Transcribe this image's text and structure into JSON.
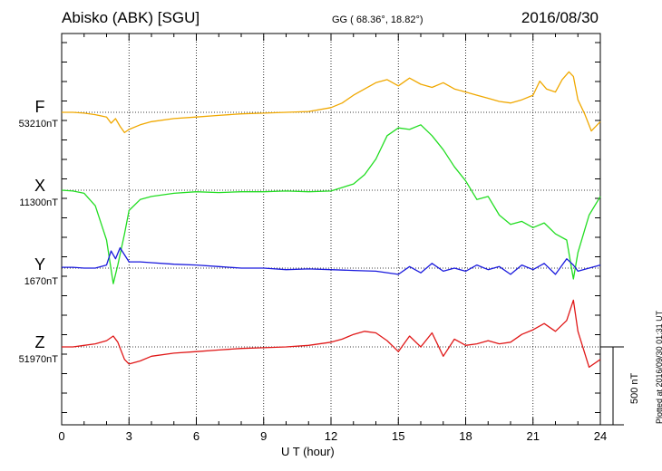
{
  "header": {
    "title": "Abisko (ABK)  [SGU]",
    "coords": "GG ( 68.36°,  18.82°)",
    "date": "2016/08/30"
  },
  "plotted_note": "Plotted at 2016/09/30 01:31  UT",
  "scale_label": "500 nT",
  "chart_data": {
    "type": "line",
    "xlabel": "U T (hour)",
    "xlim": [
      0,
      24
    ],
    "xticks": [
      "0",
      "3",
      "6",
      "9",
      "12",
      "15",
      "18",
      "21",
      "24"
    ],
    "scale_bar_nT": 500,
    "grid": true,
    "series": [
      {
        "name": "F",
        "baseline_label": "53210nT",
        "color": "#f0a800",
        "baseline_nT": 53210,
        "x": [
          0,
          0.5,
          1.0,
          1.5,
          2.0,
          2.2,
          2.4,
          2.6,
          2.8,
          3.0,
          3.5,
          4.0,
          5.0,
          6.0,
          7.0,
          8.0,
          9.0,
          10.0,
          11.0,
          12.0,
          12.5,
          13.0,
          13.5,
          14.0,
          14.5,
          15.0,
          15.5,
          16.0,
          16.5,
          17.0,
          17.5,
          18.0,
          18.5,
          19.0,
          19.5,
          20.0,
          20.5,
          21.0,
          21.3,
          21.6,
          22.0,
          22.3,
          22.6,
          22.8,
          23.0,
          23.3,
          23.6,
          24.0
        ],
        "y": [
          0,
          0,
          -5,
          -15,
          -30,
          -70,
          -40,
          -90,
          -130,
          -110,
          -80,
          -60,
          -40,
          -30,
          -20,
          -10,
          -5,
          0,
          5,
          30,
          60,
          110,
          150,
          190,
          210,
          170,
          220,
          180,
          160,
          190,
          150,
          130,
          110,
          90,
          70,
          60,
          80,
          110,
          200,
          150,
          130,
          210,
          260,
          230,
          80,
          -10,
          -120,
          -60
        ]
      },
      {
        "name": "X",
        "baseline_label": "11300nT",
        "color": "#22dd22",
        "baseline_nT": 11300,
        "x": [
          0,
          0.5,
          1.0,
          1.5,
          2.0,
          2.3,
          2.5,
          2.8,
          3.0,
          3.5,
          4.0,
          5.0,
          6.0,
          7.0,
          8.0,
          9.0,
          10.0,
          11.0,
          12.0,
          13.0,
          13.5,
          14.0,
          14.5,
          15.0,
          15.5,
          16.0,
          16.5,
          17.0,
          17.5,
          18.0,
          18.5,
          19.0,
          19.5,
          20.0,
          20.5,
          21.0,
          21.5,
          22.0,
          22.5,
          22.8,
          23.0,
          23.5,
          24.0
        ],
        "y": [
          0,
          -5,
          -20,
          -100,
          -320,
          -600,
          -480,
          -280,
          -130,
          -60,
          -40,
          -20,
          -10,
          -15,
          -10,
          -10,
          -5,
          -10,
          -5,
          40,
          100,
          200,
          350,
          400,
          390,
          420,
          350,
          260,
          150,
          60,
          -60,
          -40,
          -160,
          -220,
          -200,
          -240,
          -210,
          -280,
          -320,
          -570,
          -400,
          -160,
          -40
        ]
      },
      {
        "name": "Y",
        "baseline_label": "1670nT",
        "color": "#1a1add",
        "baseline_nT": 1670,
        "x": [
          0,
          0.5,
          1.0,
          1.5,
          2.0,
          2.2,
          2.4,
          2.6,
          3.0,
          3.5,
          4.0,
          5.0,
          6.0,
          7.0,
          8.0,
          9.0,
          10.0,
          11.0,
          12.0,
          13.0,
          14.0,
          15.0,
          15.5,
          16.0,
          16.5,
          17.0,
          17.5,
          18.0,
          18.5,
          19.0,
          19.5,
          20.0,
          20.5,
          21.0,
          21.5,
          22.0,
          22.5,
          22.8,
          23.0,
          23.5,
          24.0
        ],
        "y": [
          5,
          5,
          0,
          0,
          20,
          110,
          60,
          130,
          40,
          40,
          35,
          25,
          20,
          10,
          0,
          0,
          -10,
          -5,
          -10,
          -15,
          -20,
          -40,
          10,
          -30,
          30,
          -20,
          0,
          -20,
          20,
          -10,
          10,
          -40,
          20,
          -10,
          30,
          -40,
          60,
          20,
          -20,
          0,
          20
        ]
      },
      {
        "name": "Z",
        "baseline_label": "51970nT",
        "color": "#e01818",
        "baseline_nT": 51970,
        "x": [
          0,
          0.5,
          1.0,
          1.5,
          2.0,
          2.3,
          2.5,
          2.8,
          3.0,
          3.5,
          4.0,
          5.0,
          6.0,
          7.0,
          8.0,
          9.0,
          10.0,
          11.0,
          12.0,
          12.5,
          13.0,
          13.5,
          14.0,
          14.5,
          15.0,
          15.5,
          16.0,
          16.5,
          17.0,
          17.5,
          18.0,
          18.5,
          19.0,
          19.5,
          20.0,
          20.5,
          21.0,
          21.5,
          22.0,
          22.5,
          22.8,
          23.0,
          23.5,
          24.0
        ],
        "y": [
          0,
          0,
          10,
          20,
          40,
          70,
          30,
          -80,
          -110,
          -90,
          -60,
          -40,
          -30,
          -20,
          -10,
          -5,
          0,
          10,
          30,
          50,
          80,
          100,
          90,
          40,
          -30,
          70,
          0,
          90,
          -60,
          50,
          10,
          20,
          40,
          20,
          30,
          80,
          110,
          150,
          100,
          170,
          300,
          100,
          -130,
          -80
        ]
      }
    ]
  }
}
